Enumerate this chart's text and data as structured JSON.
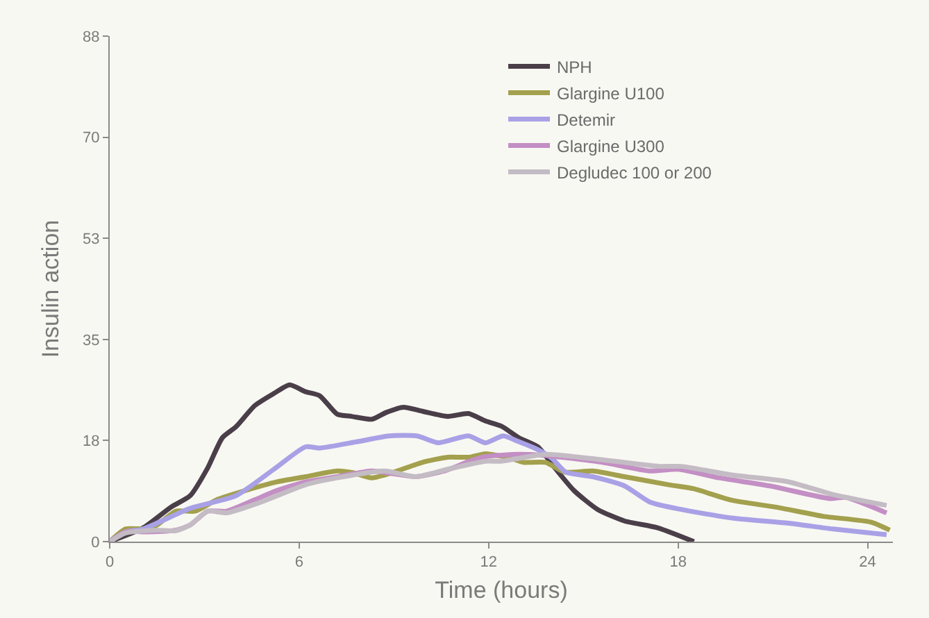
{
  "chart_data": {
    "type": "line",
    "xlabel": "Time (hours)",
    "ylabel": "Insulin action",
    "xlim": [
      0,
      24.8
    ],
    "xticks": [
      0,
      6,
      12,
      18,
      24
    ],
    "ylim": [
      0,
      88
    ],
    "yticks": [
      0,
      {
        "value": 17.6,
        "label": "18"
      },
      {
        "value": 35.2,
        "label": "35"
      },
      {
        "value": 52.8,
        "label": "53"
      },
      {
        "value": 70.4,
        "label": "70"
      },
      88
    ],
    "grid": false,
    "legend": "top right",
    "marker": "none",
    "line_style": "solid",
    "series": [
      {
        "name": "NPH",
        "color": "#4a3f49",
        "x": [
          0,
          1.06,
          1.94,
          2.55,
          3.1,
          3.57,
          4.0,
          4.6,
          5.2,
          5.7,
          6.2,
          6.65,
          7.2,
          7.66,
          8.3,
          8.76,
          9.3,
          9.9,
          10.7,
          11.36,
          11.9,
          12.4,
          12.95,
          13.56,
          14.1,
          14.7,
          15.45,
          16.3,
          17.35,
          18.5
        ],
        "values": [
          0,
          2.4,
          6,
          8,
          12.8,
          18.1,
          20,
          23.7,
          25.8,
          27.3,
          26.1,
          25.4,
          22.2,
          21.8,
          21.3,
          22.5,
          23.4,
          22.7,
          21.8,
          22.3,
          21,
          20.1,
          18.1,
          16.5,
          12.8,
          8.9,
          5.6,
          3.6,
          2.4,
          0
        ]
      },
      {
        "name": "Glargine U100",
        "color": "#a3a04e",
        "x": [
          0,
          0.5,
          1.2,
          1.5,
          2.1,
          2.7,
          3.4,
          4.3,
          5.3,
          6.2,
          7.2,
          7.7,
          8.3,
          9,
          9.9,
          10.7,
          11.4,
          11.9,
          12.7,
          13.1,
          13.8,
          14.4,
          15.3,
          16.3,
          17.7,
          18.5,
          19.7,
          21.1,
          22.6,
          24.1,
          24.7
        ],
        "values": [
          0,
          2.2,
          2.2,
          2.9,
          5.3,
          5.3,
          7.3,
          8.9,
          10.4,
          11.3,
          12.3,
          12,
          11.1,
          12.1,
          13.8,
          14.7,
          14.7,
          15.3,
          14.5,
          13.8,
          13.8,
          12.1,
          12.3,
          11.3,
          9.9,
          9.2,
          7.2,
          6,
          4.4,
          3.4,
          2
        ]
      },
      {
        "name": "Detemir",
        "color": "#a9a1e6",
        "x": [
          0,
          0.5,
          1.06,
          2.55,
          4.0,
          5.2,
          6.2,
          6.65,
          7.84,
          8.85,
          9.73,
          10.4,
          11.36,
          11.9,
          12.46,
          12.95,
          13.56,
          14,
          14.44,
          15.3,
          16.3,
          17.1,
          18.1,
          19.7,
          21.5,
          22.9,
          24.6
        ],
        "values": [
          0,
          1.7,
          2.2,
          5.8,
          8,
          12.6,
          16.5,
          16.3,
          17.4,
          18.4,
          18.4,
          17.2,
          18.4,
          17.2,
          18.4,
          17.4,
          16,
          14.5,
          12.1,
          11.3,
          9.7,
          6.9,
          5.6,
          4.1,
          3.2,
          2.2,
          1.2
        ]
      },
      {
        "name": "Glargine U300",
        "color": "#c38fc4",
        "x": [
          0,
          0.5,
          1.2,
          2.1,
          2.55,
          3.1,
          3.7,
          4.6,
          5.3,
          6.2,
          7.2,
          8.3,
          9,
          9.7,
          10.6,
          11.4,
          11.9,
          12.95,
          13.8,
          15.6,
          17.1,
          18,
          19.3,
          20.9,
          22.8,
          23.3,
          24.6
        ],
        "values": [
          0,
          1.7,
          1.7,
          2,
          2.9,
          5.3,
          5.3,
          7.3,
          8.9,
          10.4,
          11.3,
          12.3,
          11.8,
          11.3,
          12.3,
          14,
          14.8,
          15.2,
          15,
          13.8,
          12.3,
          12.6,
          11.1,
          9.7,
          7.5,
          7.7,
          5
        ]
      },
      {
        "name": "Degludec 100 or 200",
        "color": "#c4bcc4",
        "x": [
          0,
          0.5,
          1.5,
          2.1,
          2.55,
          3.1,
          3.7,
          4.75,
          6.2,
          7.2,
          8.7,
          9.7,
          10.7,
          11.9,
          12.4,
          13.8,
          15.2,
          17.4,
          18.1,
          19.7,
          21.5,
          22.9,
          24.6
        ],
        "values": [
          0,
          1.5,
          2,
          1.9,
          2.9,
          5.3,
          5,
          6.8,
          9.9,
          11.1,
          12.3,
          11.3,
          12.6,
          14,
          14,
          15.2,
          14.5,
          13.1,
          13.1,
          11.6,
          10.4,
          8.2,
          6.3
        ]
      }
    ]
  }
}
